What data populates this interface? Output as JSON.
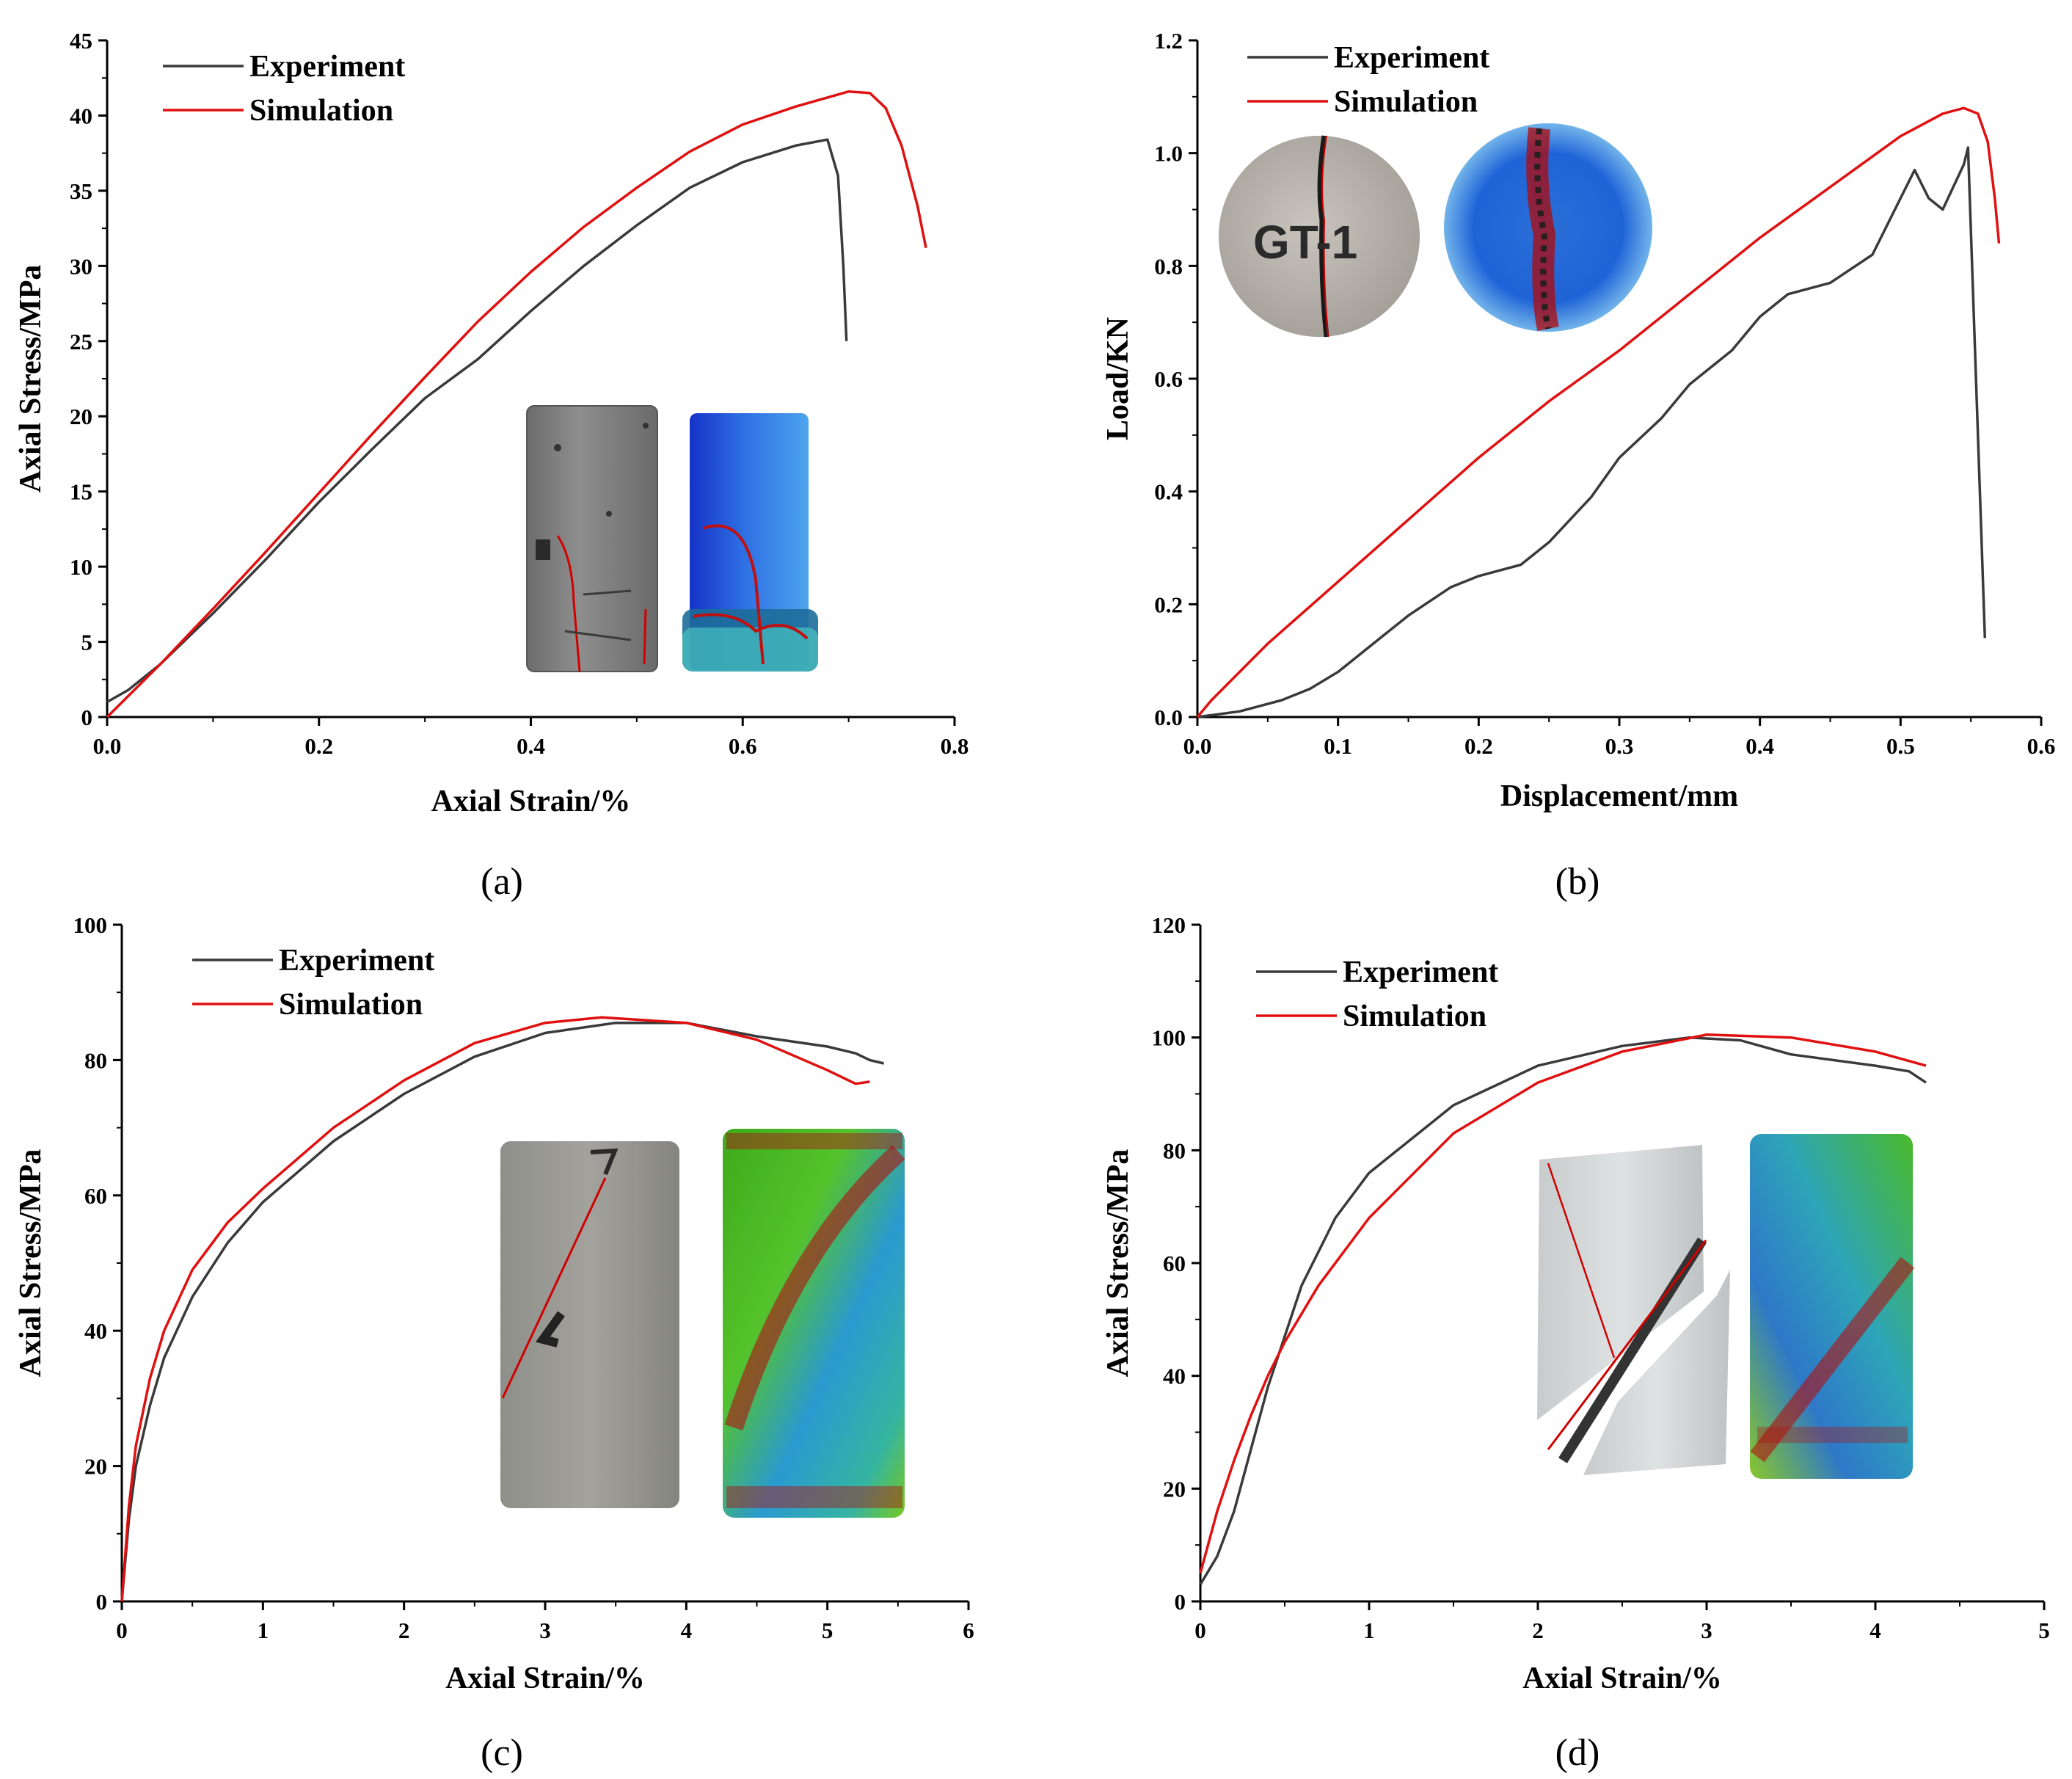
{
  "colors": {
    "experiment": "#3a3a3a",
    "simulation": "#e01010",
    "crack": "#d00000"
  },
  "chart_data": [
    {
      "panel": "(a)",
      "type": "line",
      "xlabel": "Axial Strain/%",
      "ylabel": "Axial Stress/MPa",
      "xlim": [
        0,
        0.8
      ],
      "ylim": [
        0,
        45
      ],
      "xticks": [
        "0.0",
        "0.2",
        "0.4",
        "0.6",
        "0.8"
      ],
      "yticks": [
        "0",
        "5",
        "10",
        "15",
        "20",
        "25",
        "30",
        "35",
        "40",
        "45"
      ],
      "legend": [
        "Experiment",
        "Simulation"
      ],
      "inset_label": "",
      "series": [
        {
          "name": "Experiment",
          "x": [
            0,
            0.02,
            0.05,
            0.1,
            0.15,
            0.2,
            0.25,
            0.3,
            0.35,
            0.4,
            0.45,
            0.5,
            0.55,
            0.6,
            0.65,
            0.68,
            0.69,
            0.695,
            0.698
          ],
          "y": [
            1,
            1.8,
            3.5,
            6.9,
            10.5,
            14.3,
            17.8,
            21.2,
            23.8,
            27.0,
            30.0,
            32.7,
            35.2,
            36.9,
            38.0,
            38.4,
            36.0,
            30.0,
            25.0
          ]
        },
        {
          "name": "Simulation",
          "x": [
            0,
            0.05,
            0.1,
            0.15,
            0.2,
            0.25,
            0.3,
            0.35,
            0.4,
            0.45,
            0.5,
            0.55,
            0.6,
            0.65,
            0.7,
            0.72,
            0.735,
            0.75,
            0.765,
            0.773
          ],
          "y": [
            0,
            3.5,
            7.2,
            11.0,
            14.9,
            18.8,
            22.6,
            26.3,
            29.6,
            32.6,
            35.2,
            37.6,
            39.4,
            40.6,
            41.6,
            41.5,
            40.5,
            38.0,
            34.0,
            31.2
          ]
        }
      ]
    },
    {
      "panel": "(b)",
      "type": "line",
      "xlabel": "Displacement/mm",
      "ylabel": "Load/KN",
      "xlim": [
        0,
        0.6
      ],
      "ylim": [
        0,
        1.2
      ],
      "xticks": [
        "0.0",
        "0.1",
        "0.2",
        "0.3",
        "0.4",
        "0.5",
        "0.6"
      ],
      "yticks": [
        "0.0",
        "0.2",
        "0.4",
        "0.6",
        "0.8",
        "1.0",
        "1.2"
      ],
      "legend": [
        "Experiment",
        "Simulation"
      ],
      "inset_label": "GT-1",
      "series": [
        {
          "name": "Experiment",
          "x": [
            0,
            0.03,
            0.06,
            0.08,
            0.1,
            0.12,
            0.15,
            0.18,
            0.2,
            0.23,
            0.25,
            0.28,
            0.3,
            0.33,
            0.35,
            0.38,
            0.4,
            0.42,
            0.45,
            0.48,
            0.5,
            0.51,
            0.52,
            0.53,
            0.545,
            0.548,
            0.56
          ],
          "y": [
            0,
            0.01,
            0.03,
            0.05,
            0.08,
            0.12,
            0.18,
            0.23,
            0.25,
            0.27,
            0.31,
            0.39,
            0.46,
            0.53,
            0.59,
            0.65,
            0.71,
            0.75,
            0.77,
            0.82,
            0.92,
            0.97,
            0.92,
            0.9,
            0.98,
            1.01,
            0.14
          ]
        },
        {
          "name": "Simulation",
          "x": [
            0,
            0.01,
            0.05,
            0.1,
            0.15,
            0.2,
            0.25,
            0.3,
            0.35,
            0.4,
            0.45,
            0.5,
            0.53,
            0.545,
            0.555,
            0.562,
            0.567,
            0.57
          ],
          "y": [
            0,
            0.03,
            0.13,
            0.24,
            0.35,
            0.46,
            0.56,
            0.65,
            0.75,
            0.85,
            0.94,
            1.03,
            1.07,
            1.08,
            1.07,
            1.02,
            0.92,
            0.84
          ]
        }
      ]
    },
    {
      "panel": "(c)",
      "type": "line",
      "xlabel": "Axial Strain/%",
      "ylabel": "Axial Stress/MPa",
      "xlim": [
        0,
        6
      ],
      "ylim": [
        0,
        100
      ],
      "xticks": [
        "0",
        "1",
        "2",
        "3",
        "4",
        "5",
        "6"
      ],
      "yticks": [
        "0",
        "20",
        "40",
        "60",
        "80",
        "100"
      ],
      "legend": [
        "Experiment",
        "Simulation"
      ],
      "inset_label": "",
      "series": [
        {
          "name": "Experiment",
          "x": [
            0,
            0.05,
            0.1,
            0.2,
            0.3,
            0.5,
            0.75,
            1,
            1.5,
            2,
            2.5,
            3,
            3.5,
            4,
            4.5,
            5,
            5.2,
            5.3,
            5.4
          ],
          "y": [
            0,
            12,
            20,
            29,
            36,
            45,
            53,
            59,
            68,
            75,
            80.5,
            84,
            85.5,
            85.5,
            83.5,
            82,
            81,
            80,
            79.5
          ]
        },
        {
          "name": "Simulation",
          "x": [
            0,
            0.05,
            0.1,
            0.2,
            0.3,
            0.5,
            0.75,
            1,
            1.5,
            2,
            2.5,
            3,
            3.4,
            4,
            4.5,
            5,
            5.2,
            5.3
          ],
          "y": [
            0,
            14,
            23,
            33,
            40,
            49,
            56,
            61,
            70,
            77,
            82.5,
            85.5,
            86.3,
            85.5,
            83,
            78.5,
            76.5,
            76.8
          ]
        }
      ]
    },
    {
      "panel": "(d)",
      "type": "line",
      "xlabel": "Axial Strain/%",
      "ylabel": "Axial Stress/MPa",
      "xlim": [
        0,
        5
      ],
      "ylim": [
        0,
        120
      ],
      "xticks": [
        "0",
        "1",
        "2",
        "3",
        "4",
        "5"
      ],
      "yticks": [
        "0",
        "20",
        "40",
        "60",
        "80",
        "100",
        "120"
      ],
      "legend": [
        "Experiment",
        "Simulation"
      ],
      "inset_label": "",
      "series": [
        {
          "name": "Experiment",
          "x": [
            0,
            0.1,
            0.2,
            0.3,
            0.4,
            0.5,
            0.6,
            0.8,
            1,
            1.5,
            2,
            2.5,
            2.9,
            3.2,
            3.5,
            4,
            4.2,
            4.3
          ],
          "y": [
            3,
            8,
            16,
            27,
            38,
            47,
            56,
            68,
            76,
            88,
            95,
            98.5,
            100,
            99.5,
            97,
            95,
            94,
            92
          ]
        },
        {
          "name": "Simulation",
          "x": [
            0,
            0.1,
            0.2,
            0.3,
            0.4,
            0.5,
            0.7,
            1,
            1.5,
            2,
            2.5,
            3,
            3.5,
            4,
            4.3
          ],
          "y": [
            5,
            16,
            25,
            33,
            40,
            46,
            56,
            68,
            83,
            92,
            97.5,
            100.5,
            100,
            97.5,
            95
          ]
        }
      ]
    }
  ]
}
